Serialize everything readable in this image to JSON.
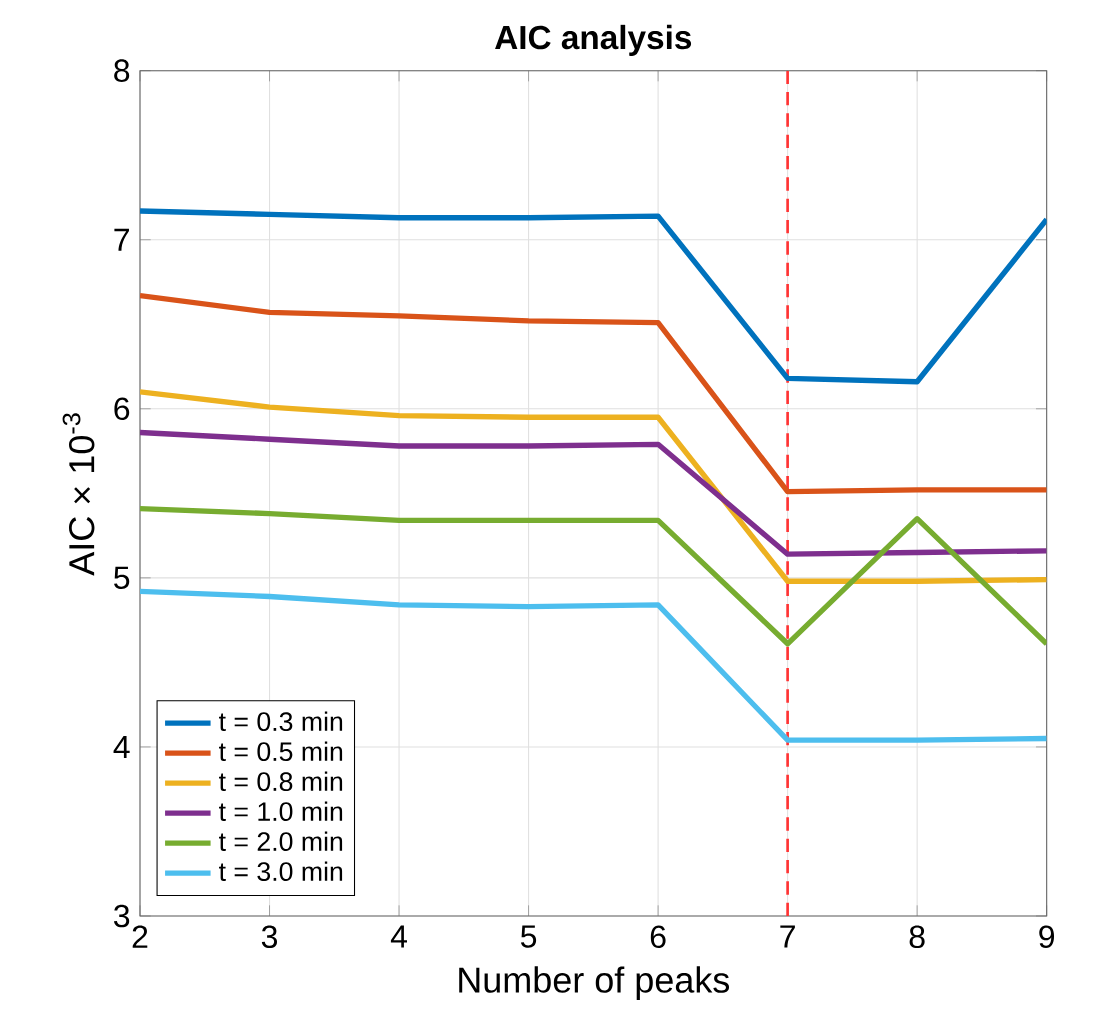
{
  "chart_data": {
    "type": "line",
    "title": "AIC analysis",
    "xlabel": "Number of peaks",
    "ylabel": "AIC × 10$^{-3}$",
    "x": [
      2,
      3,
      4,
      5,
      6,
      7,
      8,
      9
    ],
    "series": [
      {
        "name": "t = 0.3 min",
        "color": "#0072bd",
        "values": [
          7.17,
          7.15,
          7.13,
          7.13,
          7.14,
          6.18,
          6.16,
          7.12
        ]
      },
      {
        "name": "t = 0.5 min",
        "color": "#d95319",
        "values": [
          6.67,
          6.57,
          6.55,
          6.52,
          6.51,
          5.51,
          5.52,
          5.52
        ]
      },
      {
        "name": "t = 0.8 min",
        "color": "#edb120",
        "values": [
          6.1,
          6.01,
          5.96,
          5.95,
          5.95,
          4.98,
          4.98,
          4.99
        ]
      },
      {
        "name": "t = 1.0 min",
        "color": "#7e2f8e",
        "values": [
          5.86,
          5.82,
          5.78,
          5.78,
          5.79,
          5.14,
          5.15,
          5.16
        ]
      },
      {
        "name": "t = 2.0 min",
        "color": "#77ac30",
        "values": [
          5.41,
          5.38,
          5.34,
          5.34,
          5.34,
          4.61,
          5.35,
          4.61
        ]
      },
      {
        "name": "t = 3.0 min",
        "color": "#4dbeee",
        "values": [
          4.92,
          4.89,
          4.84,
          4.83,
          4.84,
          4.04,
          4.04,
          4.05
        ]
      }
    ],
    "xlim": [
      2,
      9
    ],
    "ylim": [
      3,
      8
    ],
    "xticks": [
      2,
      3,
      4,
      5,
      6,
      7,
      8,
      9
    ],
    "yticks": [
      3,
      4,
      5,
      6,
      7,
      8
    ],
    "ref_lines": [
      {
        "axis": "x",
        "value": 7,
        "color": "#ff3333",
        "line_style": "dashed"
      }
    ],
    "grid": true,
    "legend": "bottom left",
    "marker": "none",
    "line_style": "solid"
  }
}
